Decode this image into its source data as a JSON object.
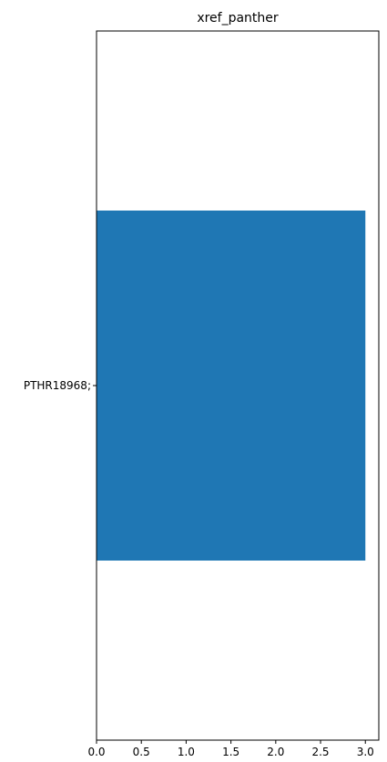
{
  "chart_data": {
    "type": "bar",
    "orientation": "horizontal",
    "title": "xref_panther",
    "xlabel": "",
    "ylabel": "",
    "categories": [
      "PTHR18968;"
    ],
    "values": [
      3
    ],
    "xlim": [
      0,
      3.15
    ],
    "xticks": [
      0.0,
      0.5,
      1.0,
      1.5,
      2.0,
      2.5,
      3.0
    ],
    "xtick_labels": [
      "0.0",
      "0.5",
      "1.0",
      "1.5",
      "2.0",
      "2.5",
      "3.0"
    ],
    "bar_color": "#1f77b4",
    "grid": false,
    "legend": "none"
  }
}
